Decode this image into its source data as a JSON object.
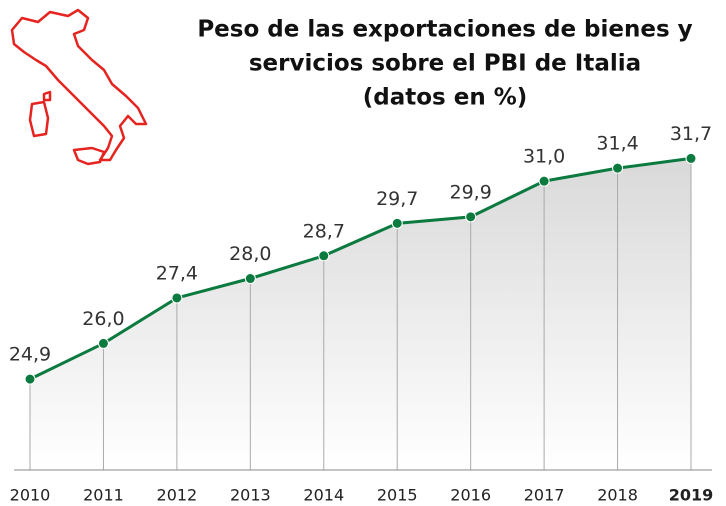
{
  "chart_data": {
    "type": "line",
    "title": [
      "Peso de las exportaciones de bienes y",
      "servicios sobre el PBI de Italia",
      "(datos en %)"
    ],
    "categories": [
      "2010",
      "2011",
      "2012",
      "2013",
      "2014",
      "2015",
      "2016",
      "2017",
      "2018",
      "2019"
    ],
    "values": [
      24.9,
      26.0,
      27.4,
      28.0,
      28.7,
      29.7,
      29.9,
      31.0,
      31.4,
      31.7
    ],
    "value_labels": [
      "24,9",
      "26,0",
      "27,4",
      "28,0",
      "28,7",
      "29,7",
      "29,9",
      "31,0",
      "31,4",
      "31,7"
    ],
    "color": "#0b7a3f",
    "ylim": [
      22.1,
      33.5
    ]
  }
}
